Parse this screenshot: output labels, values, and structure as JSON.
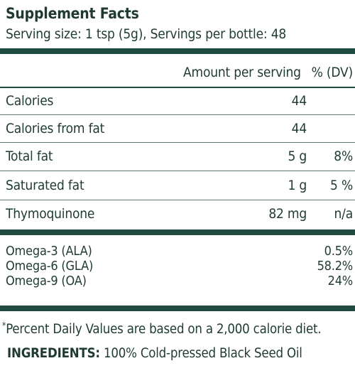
{
  "label": {
    "title": "Supplement Facts",
    "serving_info": "Serving size: 1 tsp (5g), Servings per bottle: 48",
    "header": {
      "amount": "Amount per serving",
      "dv": "% (DV)"
    },
    "rows": [
      {
        "name": "Calories",
        "amount": "44",
        "dv": ""
      },
      {
        "name": "Calories from fat",
        "amount": "44",
        "dv": ""
      },
      {
        "name": "Total fat",
        "amount": "5 g",
        "dv": "8%"
      },
      {
        "name": "Saturated fat",
        "amount": "1 g",
        "dv": "5 %"
      },
      {
        "name": "Thymoquinone",
        "amount": "82 mg",
        "dv": "n/a"
      }
    ],
    "omegas": [
      {
        "name": "Omega-3 (ALA)",
        "value": "0.5%"
      },
      {
        "name": "Omega-6 (GLA)",
        "value": "58.2%"
      },
      {
        "name": "Omega-9 (OA)",
        "value": "24%"
      }
    ],
    "footnote_mark": "*",
    "footnote": "Percent Daily Values are based on a 2,000 calorie diet.",
    "ingredients_label": "INGREDIENTS:",
    "ingredients_value": "100% Cold-pressed Black Seed Oil",
    "colors": {
      "text": "#1f3a33",
      "rule": "#1f4a40"
    }
  }
}
